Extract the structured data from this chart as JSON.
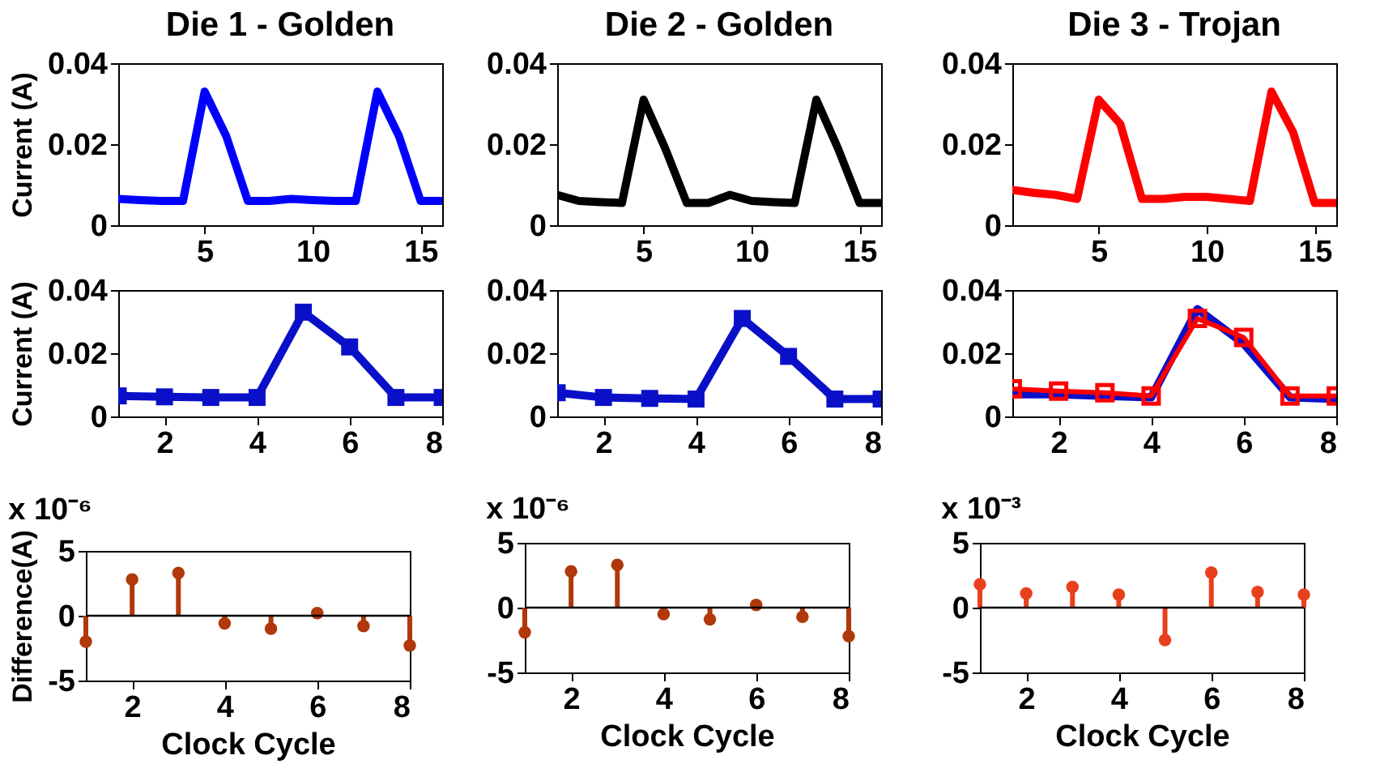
{
  "chart_data": [
    {
      "type": "line",
      "title": "Die 1 - Golden",
      "ylabel": "Current (A)",
      "x": [
        1,
        2,
        3,
        4,
        5,
        6,
        7,
        8,
        9,
        10,
        11,
        12,
        13,
        14,
        15,
        16
      ],
      "xlim": [
        1,
        16
      ],
      "xticks": [
        5,
        10,
        15
      ],
      "ylim": [
        0,
        0.04
      ],
      "yticks": [
        0,
        0.02,
        0.04
      ],
      "marker": "none",
      "grid": false,
      "series": [
        {
          "color": "#0000ff",
          "values": [
            0.0065,
            0.0062,
            0.006,
            0.006,
            0.033,
            0.022,
            0.006,
            0.006,
            0.0065,
            0.0062,
            0.006,
            0.006,
            0.033,
            0.022,
            0.006,
            0.006
          ]
        }
      ]
    },
    {
      "type": "line",
      "title": "Die 2 - Golden",
      "x": [
        1,
        2,
        3,
        4,
        5,
        6,
        7,
        8,
        9,
        10,
        11,
        12,
        13,
        14,
        15,
        16
      ],
      "xlim": [
        1,
        16
      ],
      "xticks": [
        5,
        10,
        15
      ],
      "ylim": [
        0,
        0.04
      ],
      "yticks": [
        0,
        0.02,
        0.04
      ],
      "marker": "none",
      "grid": false,
      "series": [
        {
          "color": "#000000",
          "values": [
            0.0075,
            0.006,
            0.0057,
            0.0055,
            0.031,
            0.019,
            0.0055,
            0.0055,
            0.0075,
            0.006,
            0.0057,
            0.0055,
            0.031,
            0.019,
            0.0055,
            0.0055
          ]
        }
      ]
    },
    {
      "type": "line",
      "title": "Die 3 - Trojan",
      "x": [
        1,
        2,
        3,
        4,
        5,
        6,
        7,
        8,
        9,
        10,
        11,
        12,
        13,
        14,
        15,
        16
      ],
      "xlim": [
        1,
        16
      ],
      "xticks": [
        5,
        10,
        15
      ],
      "ylim": [
        0,
        0.04
      ],
      "yticks": [
        0,
        0.02,
        0.04
      ],
      "marker": "none",
      "grid": false,
      "series": [
        {
          "color": "#ff0000",
          "values": [
            0.0087,
            0.008,
            0.0075,
            0.0065,
            0.031,
            0.025,
            0.0065,
            0.0065,
            0.007,
            0.007,
            0.0065,
            0.006,
            0.033,
            0.023,
            0.0055,
            0.0055
          ]
        }
      ]
    },
    {
      "type": "line",
      "ylabel": "Current (A)",
      "x": [
        1,
        2,
        3,
        4,
        5,
        6,
        7,
        8
      ],
      "xlim": [
        1,
        8
      ],
      "xticks": [
        2,
        4,
        6,
        8
      ],
      "ylim": [
        0,
        0.04
      ],
      "yticks": [
        0,
        0.02,
        0.04
      ],
      "marker": "square",
      "grid": false,
      "series": [
        {
          "color": "#0a10c8",
          "values": [
            0.0065,
            0.0062,
            0.006,
            0.006,
            0.033,
            0.022,
            0.006,
            0.006
          ]
        }
      ]
    },
    {
      "type": "line",
      "x": [
        1,
        2,
        3,
        4,
        5,
        6,
        7,
        8
      ],
      "xlim": [
        1,
        8
      ],
      "xticks": [
        2,
        4,
        6,
        8
      ],
      "ylim": [
        0,
        0.04
      ],
      "yticks": [
        0,
        0.02,
        0.04
      ],
      "marker": "square",
      "grid": false,
      "series": [
        {
          "color": "#0a10c8",
          "values": [
            0.0075,
            0.006,
            0.0057,
            0.0055,
            0.031,
            0.019,
            0.0055,
            0.0055
          ]
        }
      ]
    },
    {
      "type": "line",
      "x": [
        1,
        2,
        3,
        4,
        5,
        6,
        7,
        8
      ],
      "xlim": [
        1,
        8
      ],
      "xticks": [
        2,
        4,
        6,
        8
      ],
      "ylim": [
        0,
        0.04
      ],
      "yticks": [
        0,
        0.02,
        0.04
      ],
      "grid": false,
      "series": [
        {
          "color": "#0a10c8",
          "marker": "none",
          "values": [
            0.007,
            0.007,
            0.0065,
            0.006,
            0.034,
            0.023,
            0.006,
            0.0055
          ]
        },
        {
          "color": "#ff0000",
          "marker": "square",
          "values": [
            0.0087,
            0.008,
            0.0075,
            0.0065,
            0.031,
            0.025,
            0.0065,
            0.0065
          ]
        }
      ]
    },
    {
      "type": "lollipop",
      "ylabel": "Difference(A)",
      "xlabel": "Clock Cycle",
      "annotations": [
        "x 10⁻⁶"
      ],
      "x": [
        1,
        2,
        3,
        4,
        5,
        6,
        7,
        8
      ],
      "xlim": [
        1,
        8
      ],
      "xticks": [
        2,
        4,
        6,
        8
      ],
      "ylim": [
        -5,
        5
      ],
      "yticks": [
        -5,
        0,
        5
      ],
      "marker": "circle",
      "grid": false,
      "ref_lines": [
        {
          "axis": "y",
          "value": 0
        }
      ],
      "series": [
        {
          "color": "#b0380a",
          "values": [
            -2,
            2.8,
            3.3,
            -0.6,
            -1,
            0.2,
            -0.8,
            -2.3
          ]
        }
      ]
    },
    {
      "type": "lollipop",
      "xlabel": "Clock Cycle",
      "annotations": [
        "x 10⁻⁶"
      ],
      "x": [
        1,
        2,
        3,
        4,
        5,
        6,
        7,
        8
      ],
      "xlim": [
        1,
        8
      ],
      "xticks": [
        2,
        4,
        6,
        8
      ],
      "ylim": [
        -5,
        5
      ],
      "yticks": [
        -5,
        0,
        5
      ],
      "marker": "circle",
      "grid": false,
      "ref_lines": [
        {
          "axis": "y",
          "value": 0
        }
      ],
      "series": [
        {
          "color": "#b0380a",
          "values": [
            -1.9,
            2.8,
            3.3,
            -0.5,
            -0.9,
            0.2,
            -0.7,
            -2.2
          ]
        }
      ]
    },
    {
      "type": "lollipop",
      "xlabel": "Clock Cycle",
      "annotations": [
        "x 10⁻³"
      ],
      "x": [
        1,
        2,
        3,
        4,
        5,
        6,
        7,
        8
      ],
      "xlim": [
        1,
        8
      ],
      "xticks": [
        2,
        4,
        6,
        8
      ],
      "ylim": [
        -5,
        5
      ],
      "yticks": [
        -5,
        0,
        5
      ],
      "marker": "circle",
      "grid": false,
      "ref_lines": [
        {
          "axis": "y",
          "value": 0
        }
      ],
      "series": [
        {
          "color": "#e8401c",
          "values": [
            1.8,
            1.1,
            1.6,
            1.0,
            -2.5,
            2.7,
            1.2,
            1.0
          ]
        }
      ]
    }
  ]
}
